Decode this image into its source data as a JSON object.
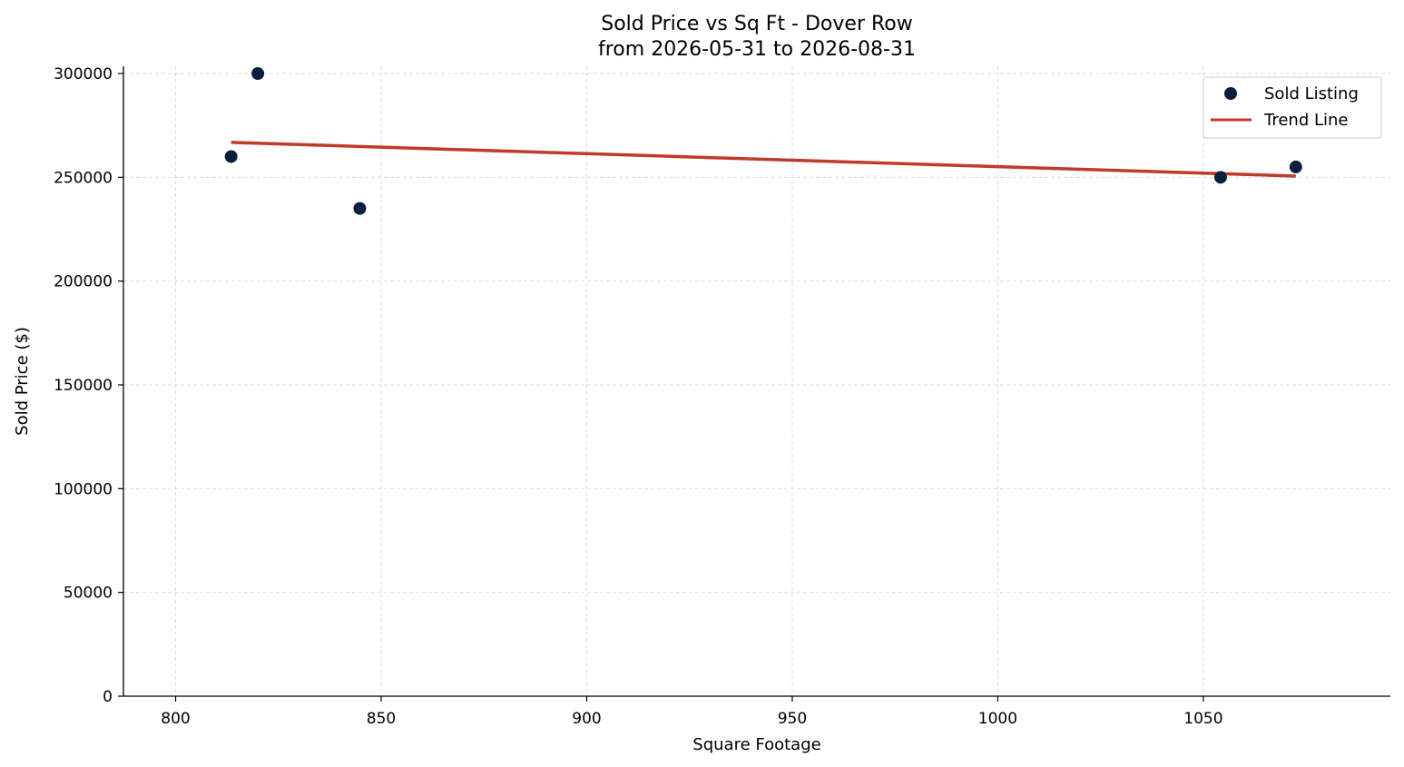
{
  "chart_data": {
    "type": "scatter",
    "title_line1": "Sold Price vs Sq Ft - Dover Row",
    "title_line2": "from 2026-05-31 to 2026-08-31",
    "xlabel": "Square Footage",
    "ylabel": "Sold Price ($)",
    "xlim": [
      787.3,
      1095.5
    ],
    "ylim": [
      0,
      303500
    ],
    "xticks": [
      800,
      850,
      900,
      950,
      1000,
      1050
    ],
    "yticks": [
      0,
      50000,
      100000,
      150000,
      200000,
      250000,
      300000
    ],
    "grid": true,
    "legend_position": "top-right",
    "series": [
      {
        "name": "Sold Listing",
        "kind": "scatter",
        "color": "#0a1f3d",
        "points": [
          {
            "x": 813.5,
            "y": 260000
          },
          {
            "x": 820,
            "y": 300000
          },
          {
            "x": 844.8,
            "y": 235000
          },
          {
            "x": 1054.2,
            "y": 250000
          },
          {
            "x": 1072.5,
            "y": 255000
          }
        ]
      },
      {
        "name": "Trend Line",
        "kind": "line",
        "color": "#c0392b",
        "points": [
          {
            "x": 813.5,
            "y": 266800
          },
          {
            "x": 1072.5,
            "y": 250600
          }
        ]
      }
    ]
  }
}
